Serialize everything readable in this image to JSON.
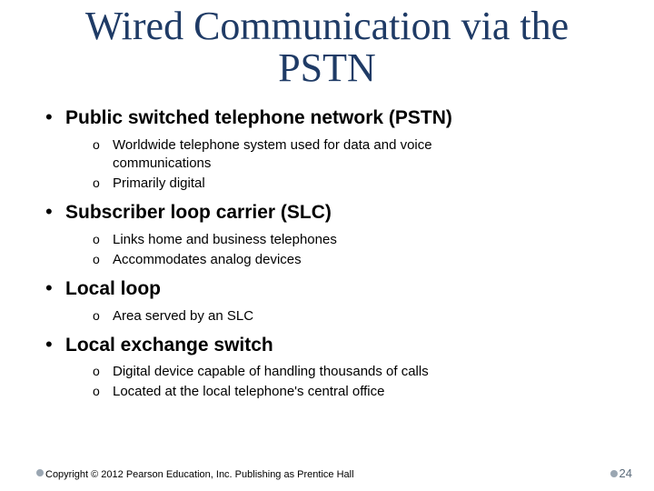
{
  "title": "Wired Communication via the PSTN",
  "colors": {
    "title": "#1f3b66",
    "text": "#000000",
    "background": "#ffffff",
    "footer_bullet": "#9aa6b2",
    "pagenum": "#5a6a7a"
  },
  "typography": {
    "title_font": "Georgia, Times New Roman, serif",
    "body_font": "Verdana, Geneva, sans-serif",
    "title_size_pt": 33,
    "main_label_size_pt": 16,
    "sub_item_size_pt": 11,
    "footer_size_pt": 8
  },
  "bullets": [
    {
      "label": "Public switched telephone network (PSTN)",
      "subs": [
        "Worldwide telephone system used for data and voice communications",
        "Primarily digital"
      ]
    },
    {
      "label": "Subscriber loop carrier (SLC)",
      "subs": [
        "Links home and business telephones",
        "Accommodates analog devices"
      ]
    },
    {
      "label": "Local loop",
      "subs": [
        "Area served by an SLC"
      ]
    },
    {
      "label": "Local exchange switch",
      "subs": [
        "Digital device capable of handling thousands of calls",
        "Located at the local telephone's central office"
      ]
    }
  ],
  "footer": "Copyright © 2012 Pearson Education, Inc. Publishing as Prentice Hall",
  "page_number": "24"
}
